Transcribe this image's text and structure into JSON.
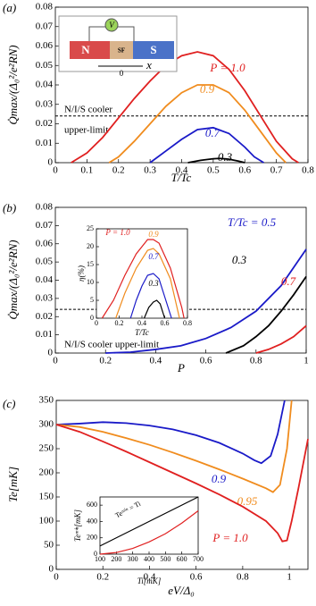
{
  "chart_data": [
    {
      "type": "line",
      "panel": "(a)",
      "x_label": "T/Tc",
      "y_label": "Q̇max/(Δ₀²/e²RN)",
      "xlim": [
        0,
        0.8
      ],
      "xticks": [
        0,
        0.1,
        0.2,
        0.3,
        0.4,
        0.5,
        0.6,
        0.7,
        0.8
      ],
      "ylim": [
        0,
        0.08
      ],
      "yticks": [
        0,
        0.01,
        0.02,
        0.03,
        0.04,
        0.05,
        0.06,
        0.07,
        0.08
      ],
      "hline": 0.024,
      "annotation": [
        "N/I/S cooler",
        "upper-limit"
      ],
      "inset_diagram": {
        "left": "N",
        "middle": "SF",
        "right": "S",
        "source": "V",
        "axis": "x",
        "origin": "0"
      },
      "series": [
        {
          "name": "P = 1.0",
          "color": "#e02020",
          "x": [
            0.05,
            0.1,
            0.15,
            0.2,
            0.25,
            0.3,
            0.35,
            0.4,
            0.45,
            0.5,
            0.55,
            0.6,
            0.65,
            0.7,
            0.75,
            0.77
          ],
          "values": [
            0,
            0.005,
            0.013,
            0.023,
            0.033,
            0.042,
            0.05,
            0.055,
            0.057,
            0.055,
            0.048,
            0.037,
            0.024,
            0.011,
            0.002,
            0
          ]
        },
        {
          "name": "0.9",
          "color": "#f08c1e",
          "x": [
            0.17,
            0.2,
            0.25,
            0.3,
            0.35,
            0.4,
            0.45,
            0.5,
            0.55,
            0.6,
            0.65,
            0.7,
            0.73
          ],
          "values": [
            0,
            0.003,
            0.011,
            0.02,
            0.029,
            0.036,
            0.04,
            0.04,
            0.036,
            0.027,
            0.016,
            0.005,
            0
          ]
        },
        {
          "name": "0.7",
          "color": "#1a1ac8",
          "x": [
            0.3,
            0.35,
            0.4,
            0.45,
            0.5,
            0.55,
            0.6,
            0.63,
            0.66
          ],
          "values": [
            0,
            0.006,
            0.012,
            0.017,
            0.018,
            0.015,
            0.008,
            0.003,
            0
          ]
        },
        {
          "name": "0.3",
          "color": "#000000",
          "x": [
            0.42,
            0.46,
            0.5,
            0.52,
            0.55,
            0.58,
            0.6
          ],
          "values": [
            0,
            0.0012,
            0.002,
            0.0022,
            0.0018,
            0.0008,
            0
          ]
        }
      ]
    },
    {
      "type": "line",
      "panel": "(b)",
      "x_label": "P",
      "y_label": "Q̇max/(Δ₀²/e²RN)",
      "xlim": [
        0,
        1
      ],
      "xticks": [
        0,
        0.2,
        0.4,
        0.6,
        0.8,
        1
      ],
      "ylim": [
        0,
        0.08
      ],
      "yticks": [
        0,
        0.01,
        0.02,
        0.03,
        0.04,
        0.05,
        0.06,
        0.07,
        0.08
      ],
      "hline": 0.024,
      "annotation": [
        "N/I/S cooler upper-limit"
      ],
      "series": [
        {
          "name": "T/Tc = 0.5",
          "color": "#1a1ac8",
          "x": [
            0.2,
            0.3,
            0.4,
            0.5,
            0.6,
            0.7,
            0.8,
            0.9,
            1.0
          ],
          "values": [
            0,
            0.0005,
            0.002,
            0.004,
            0.008,
            0.014,
            0.023,
            0.037,
            0.057
          ]
        },
        {
          "name": "0.3",
          "color": "#000000",
          "x": [
            0.68,
            0.75,
            0.8,
            0.85,
            0.9,
            0.95,
            1.0
          ],
          "values": [
            0,
            0.004,
            0.009,
            0.015,
            0.023,
            0.032,
            0.042
          ]
        },
        {
          "name": "0.7",
          "color": "#e02020",
          "x": [
            0.8,
            0.85,
            0.9,
            0.95,
            1.0
          ],
          "values": [
            0,
            0.002,
            0.005,
            0.009,
            0.015
          ]
        }
      ]
    },
    {
      "type": "line",
      "inset": true,
      "x_label": "T/Tc",
      "y_label": "η(%)",
      "xlim": [
        0,
        0.8
      ],
      "xticks": [
        0,
        0.2,
        0.4,
        0.6,
        0.8
      ],
      "ylim": [
        0,
        25
      ],
      "yticks": [
        0,
        5,
        10,
        15,
        20,
        25
      ],
      "series": [
        {
          "name": "P = 1.0",
          "color": "#e02020",
          "x": [
            0.05,
            0.15,
            0.25,
            0.35,
            0.45,
            0.5,
            0.55,
            0.65,
            0.75,
            0.77
          ],
          "values": [
            0,
            5,
            12,
            18,
            22,
            22,
            21,
            14,
            3,
            0
          ]
        },
        {
          "name": "0.9",
          "color": "#f08c1e",
          "x": [
            0.17,
            0.25,
            0.35,
            0.45,
            0.5,
            0.55,
            0.65,
            0.73
          ],
          "values": [
            0,
            7,
            14,
            19,
            19.5,
            18,
            11,
            0
          ]
        },
        {
          "name": "0.7",
          "color": "#1a1ac8",
          "x": [
            0.3,
            0.35,
            0.4,
            0.45,
            0.5,
            0.55,
            0.6,
            0.66
          ],
          "values": [
            0,
            5,
            9,
            12,
            12.5,
            11,
            6,
            0
          ]
        },
        {
          "name": "0.3",
          "color": "#000000",
          "x": [
            0.42,
            0.46,
            0.5,
            0.53,
            0.56,
            0.6
          ],
          "values": [
            0,
            3,
            4.5,
            5,
            4,
            0
          ]
        }
      ]
    },
    {
      "type": "line",
      "panel": "(c)",
      "x_label": "eV/Δ₀",
      "y_label": "Te[mK]",
      "xlim": [
        0,
        1.08
      ],
      "xticks": [
        0,
        0.2,
        0.4,
        0.6,
        0.8,
        1
      ],
      "ylim": [
        0,
        350
      ],
      "yticks": [
        0,
        50,
        100,
        150,
        200,
        250,
        300,
        350
      ],
      "series": [
        {
          "name": "0.9",
          "color": "#1a1ac8",
          "x": [
            0,
            0.1,
            0.2,
            0.3,
            0.4,
            0.5,
            0.6,
            0.7,
            0.8,
            0.85,
            0.88,
            0.92,
            0.95,
            0.98
          ],
          "values": [
            300,
            302,
            305,
            303,
            298,
            290,
            278,
            262,
            240,
            226,
            220,
            235,
            280,
            350
          ]
        },
        {
          "name": "0.95",
          "color": "#f08c1e",
          "x": [
            0,
            0.1,
            0.2,
            0.3,
            0.4,
            0.5,
            0.6,
            0.7,
            0.8,
            0.9,
            0.93,
            0.96,
            0.99,
            1.01
          ],
          "values": [
            300,
            295,
            285,
            272,
            258,
            242,
            225,
            207,
            188,
            168,
            160,
            175,
            250,
            350
          ]
        },
        {
          "name": "P = 1.0",
          "color": "#e02020",
          "x": [
            0,
            0.1,
            0.2,
            0.3,
            0.4,
            0.5,
            0.6,
            0.7,
            0.8,
            0.9,
            0.95,
            0.97,
            0.99,
            1.01,
            1.04,
            1.08
          ],
          "values": [
            300,
            285,
            265,
            244,
            222,
            200,
            178,
            155,
            130,
            100,
            75,
            58,
            60,
            100,
            170,
            270
          ]
        }
      ]
    },
    {
      "type": "line",
      "inset": true,
      "x_label": "Ti[mK]",
      "y_label": "Teᵐⁱⁿ[mK]",
      "xlim": [
        100,
        700
      ],
      "xticks": [
        100,
        200,
        300,
        400,
        500,
        600,
        700
      ],
      "ylim": [
        0,
        700
      ],
      "yticks": [
        0,
        200,
        400,
        600
      ],
      "annotation": [
        "Teᵐⁱⁿ = Ti"
      ],
      "series": [
        {
          "name": "",
          "color": "#000000",
          "x": [
            100,
            700
          ],
          "values": [
            100,
            700
          ]
        },
        {
          "name": "",
          "color": "#e02020",
          "x": [
            100,
            200,
            300,
            400,
            500,
            600,
            700
          ],
          "values": [
            0,
            20,
            70,
            150,
            250,
            380,
            530
          ]
        }
      ]
    }
  ]
}
